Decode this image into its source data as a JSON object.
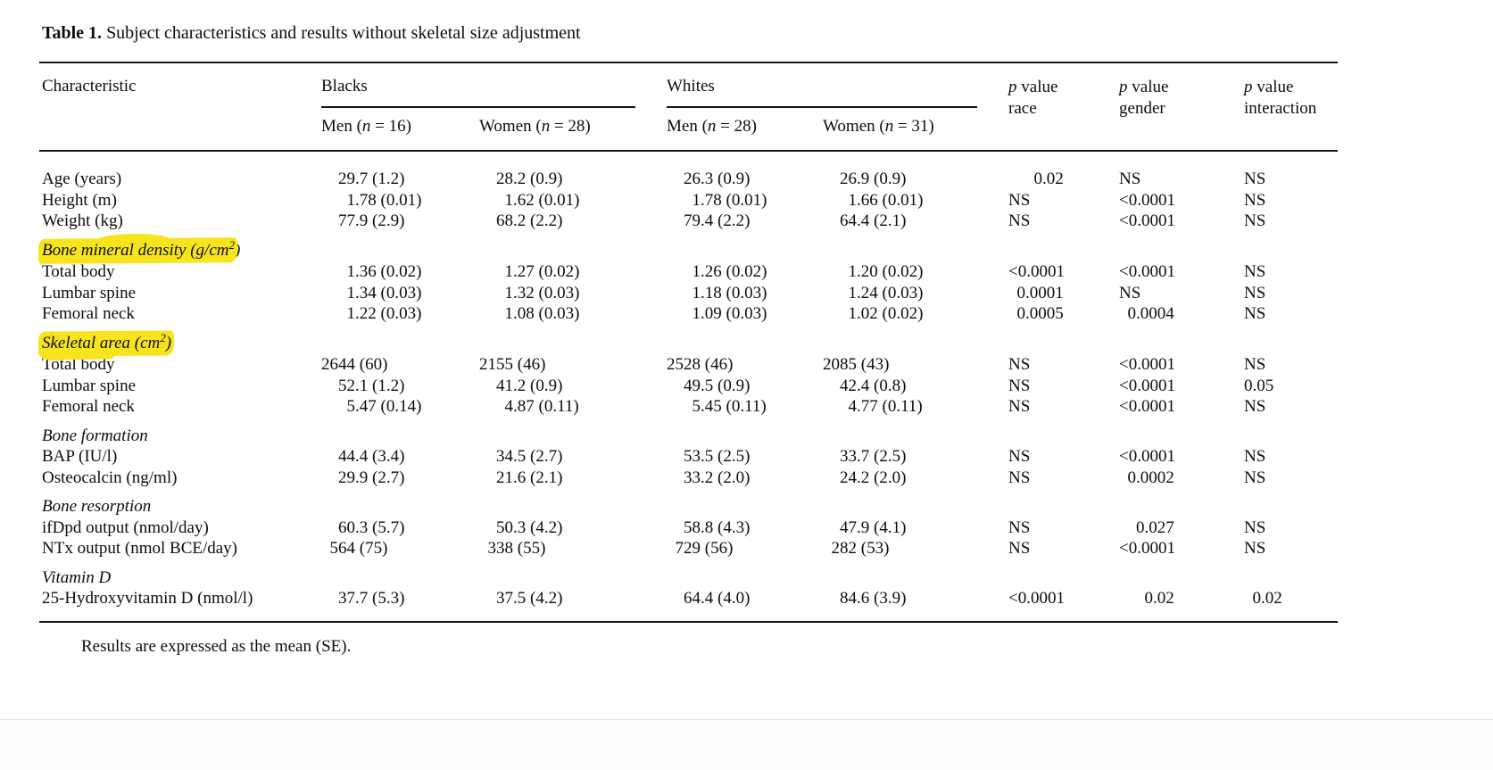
{
  "page": {
    "title_bold": "Table 1.",
    "title_rest": " Subject characteristics and results without skeletal size adjustment",
    "footnote": "Results are expressed as the mean (SE)."
  },
  "colors": {
    "highlight": "#f7e41c",
    "rule": "#161616",
    "text": "#0d0d0d",
    "faint_rule": "#e6e6e6"
  },
  "header": {
    "characteristic": "Characteristic",
    "groups": [
      {
        "label": "Blacks",
        "sub": [
          {
            "pre": "Men (",
            "n": "n",
            "post": " = 16)"
          },
          {
            "pre": "Women (",
            "n": "n",
            "post": " = 28)"
          }
        ]
      },
      {
        "label": "Whites",
        "sub": [
          {
            "pre": "Men (",
            "n": "n",
            "post": " = 28)"
          },
          {
            "pre": "Women (",
            "n": "n",
            "post": " = 31)"
          }
        ]
      }
    ],
    "pvalues": [
      {
        "italic": "p",
        "rest": " value",
        "line2": "race"
      },
      {
        "italic": "p",
        "rest": " value",
        "line2": "gender"
      },
      {
        "italic": "p",
        "rest": " value",
        "line2": "interaction"
      }
    ]
  },
  "rows": [
    {
      "type": "data",
      "label": "Age (years)",
      "cells": [
        "  29.7 (1.2)",
        "  28.2 (0.9)",
        "  26.3 (0.9)",
        "  26.9 (0.9)",
        "   0.02",
        "NS",
        "NS"
      ]
    },
    {
      "type": "data",
      "label": "Height (m)",
      "cells": [
        "   1.78 (0.01)",
        "   1.62 (0.01)",
        "   1.78 (0.01)",
        "   1.66 (0.01)",
        "NS",
        "<0.0001",
        "NS"
      ]
    },
    {
      "type": "data",
      "label": "Weight (kg)",
      "cells": [
        "  77.9 (2.9)",
        "  68.2 (2.2)",
        "  79.4 (2.2)",
        "  64.4 (2.1)",
        "NS",
        "<0.0001",
        "NS"
      ]
    },
    {
      "type": "section",
      "pre": "Bone mineral density (g/cm",
      "sup": "2",
      "hl_post": "",
      "tail": ")",
      "highlight": true,
      "bump": true,
      "swipe": false
    },
    {
      "type": "data",
      "label": "Total body",
      "cells": [
        "   1.36 (0.02)",
        "   1.27 (0.02)",
        "   1.26 (0.02)",
        "   1.20 (0.02)",
        "<0.0001",
        "<0.0001",
        "NS"
      ]
    },
    {
      "type": "data",
      "label": "Lumbar spine",
      "cells": [
        "   1.34 (0.03)",
        "   1.32 (0.03)",
        "   1.18 (0.03)",
        "   1.24 (0.03)",
        " 0.0001",
        "NS",
        "NS"
      ]
    },
    {
      "type": "data",
      "label": "Femoral neck",
      "cells": [
        "   1.22 (0.03)",
        "   1.08 (0.03)",
        "   1.09 (0.03)",
        "   1.02 (0.02)",
        " 0.0005",
        " 0.0004",
        "NS"
      ]
    },
    {
      "type": "section",
      "pre": "Skeletal area (cm",
      "sup": "2",
      "hl_post": ")",
      "tail": "",
      "highlight": true,
      "bump": false,
      "swipe": true
    },
    {
      "type": "data",
      "label": "Total body",
      "cells": [
        "2644 (60)",
        "2155 (46)",
        "2528 (46)",
        "2085 (43)",
        "NS",
        "<0.0001",
        "NS"
      ]
    },
    {
      "type": "data",
      "label": "Lumbar spine",
      "cells": [
        "  52.1 (1.2)",
        "  41.2 (0.9)",
        "  49.5 (0.9)",
        "  42.4 (0.8)",
        "NS",
        "<0.0001",
        "0.05"
      ]
    },
    {
      "type": "data",
      "label": "Femoral neck",
      "cells": [
        "   5.47 (0.14)",
        "   4.87 (0.11)",
        "   5.45 (0.11)",
        "   4.77 (0.11)",
        "NS",
        "<0.0001",
        "NS"
      ]
    },
    {
      "type": "section",
      "pre": "Bone formation",
      "sup": "",
      "hl_post": "",
      "tail": "",
      "highlight": false,
      "bump": false,
      "swipe": false
    },
    {
      "type": "data",
      "label": "BAP (IU/l)",
      "cells": [
        "  44.4 (3.4)",
        "  34.5 (2.7)",
        "  53.5 (2.5)",
        "  33.7 (2.5)",
        "NS",
        "<0.0001",
        "NS"
      ]
    },
    {
      "type": "data",
      "label": "Osteocalcin (ng/ml)",
      "cells": [
        "  29.9 (2.7)",
        "  21.6 (2.1)",
        "  33.2 (2.0)",
        "  24.2 (2.0)",
        "NS",
        " 0.0002",
        "NS"
      ]
    },
    {
      "type": "section",
      "pre": "Bone resorption",
      "sup": "",
      "hl_post": "",
      "tail": "",
      "highlight": false,
      "bump": false,
      "swipe": false
    },
    {
      "type": "data",
      "label": "ifDpd output (nmol/day)",
      "cells": [
        "  60.3 (5.7)",
        "  50.3 (4.2)",
        "  58.8 (4.3)",
        "  47.9 (4.1)",
        "NS",
        "  0.027",
        "NS"
      ]
    },
    {
      "type": "data",
      "label": "NTx output (nmol BCE/day)",
      "cells": [
        " 564 (75)",
        " 338 (55)",
        " 729 (56)",
        " 282 (53)",
        "NS",
        "<0.0001",
        "NS"
      ]
    },
    {
      "type": "section",
      "pre": "Vitamin D",
      "sup": "",
      "hl_post": "",
      "tail": "",
      "highlight": false,
      "bump": false,
      "swipe": false
    },
    {
      "type": "data",
      "label": "25-Hydroxyvitamin D (nmol/l)",
      "cells": [
        "  37.7 (5.3)",
        "  37.5 (4.2)",
        "  64.4 (4.0)",
        "  84.6 (3.9)",
        "<0.0001",
        "   0.02",
        " 0.02"
      ]
    }
  ]
}
